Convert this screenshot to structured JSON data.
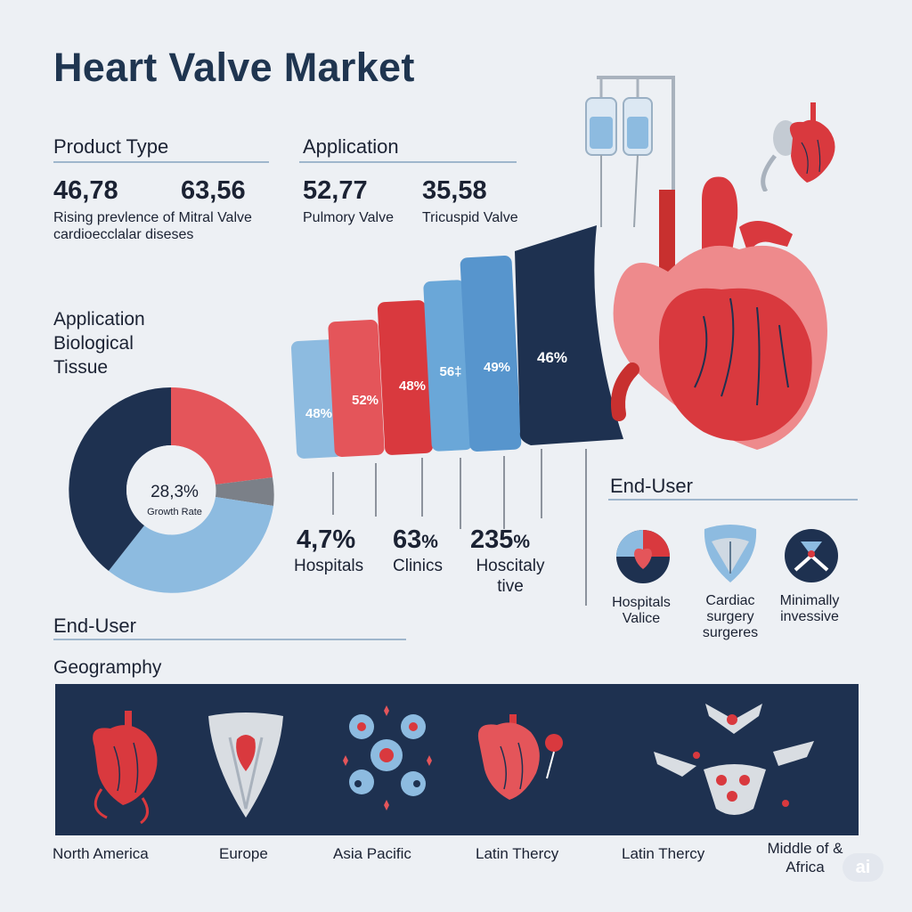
{
  "header": {
    "title": "Heart Valve Market"
  },
  "product_type": {
    "heading": "Product Type",
    "stats": [
      {
        "value": "46,78",
        "label": "Rising prevlence of Mitral Valve cardioecclalar diseses"
      },
      {
        "value": "63,56",
        "label": ""
      }
    ]
  },
  "application_top": {
    "heading": "Application",
    "stats": [
      {
        "value": "52,77",
        "label": "Pulmory Valve"
      },
      {
        "value": "35,58",
        "label": "Tricuspid Valve"
      }
    ]
  },
  "donut_section": {
    "heading": "Application Biological Tissue",
    "center_value": "28,3%",
    "center_label": "Growth Rate"
  },
  "bars": {
    "labels": [
      "48%",
      "52%",
      "48%",
      "56‡",
      "49%",
      "46%"
    ],
    "colors": [
      "#8dbbe0",
      "#e4555a",
      "#d9393e",
      "#6aa7d8",
      "#5795cd",
      "#1e3150"
    ]
  },
  "bar_footer": [
    {
      "value": "4,7%",
      "label": "Hospitals"
    },
    {
      "value": "63",
      "pct": "%",
      "label": "Clinics"
    },
    {
      "value": "235",
      "pct": "%",
      "label": "Hoscitaly tive"
    }
  ],
  "end_user_right": {
    "heading": "End-User",
    "items": [
      {
        "icon": "heart-valve-badge-icon",
        "label": "Hospitals Valice"
      },
      {
        "icon": "valve-leaflet-icon",
        "label": "Cardiac surgery surgeres"
      },
      {
        "icon": "minimally-invasive-icon",
        "label": "Minimally invessive"
      }
    ]
  },
  "end_user_left": {
    "heading": "End-User"
  },
  "geography": {
    "heading": "Geogramphy",
    "regions": [
      "North America",
      "Europe",
      "Asia Pacific",
      "Latin Thercy",
      "Latin Thercy",
      "Middle of & Africa"
    ]
  },
  "badge": {
    "text": "ai"
  },
  "colors": {
    "navy": "#1e3150",
    "red": "#e4555a",
    "light_blue": "#8dbbe0",
    "gray": "#7b8088"
  }
}
